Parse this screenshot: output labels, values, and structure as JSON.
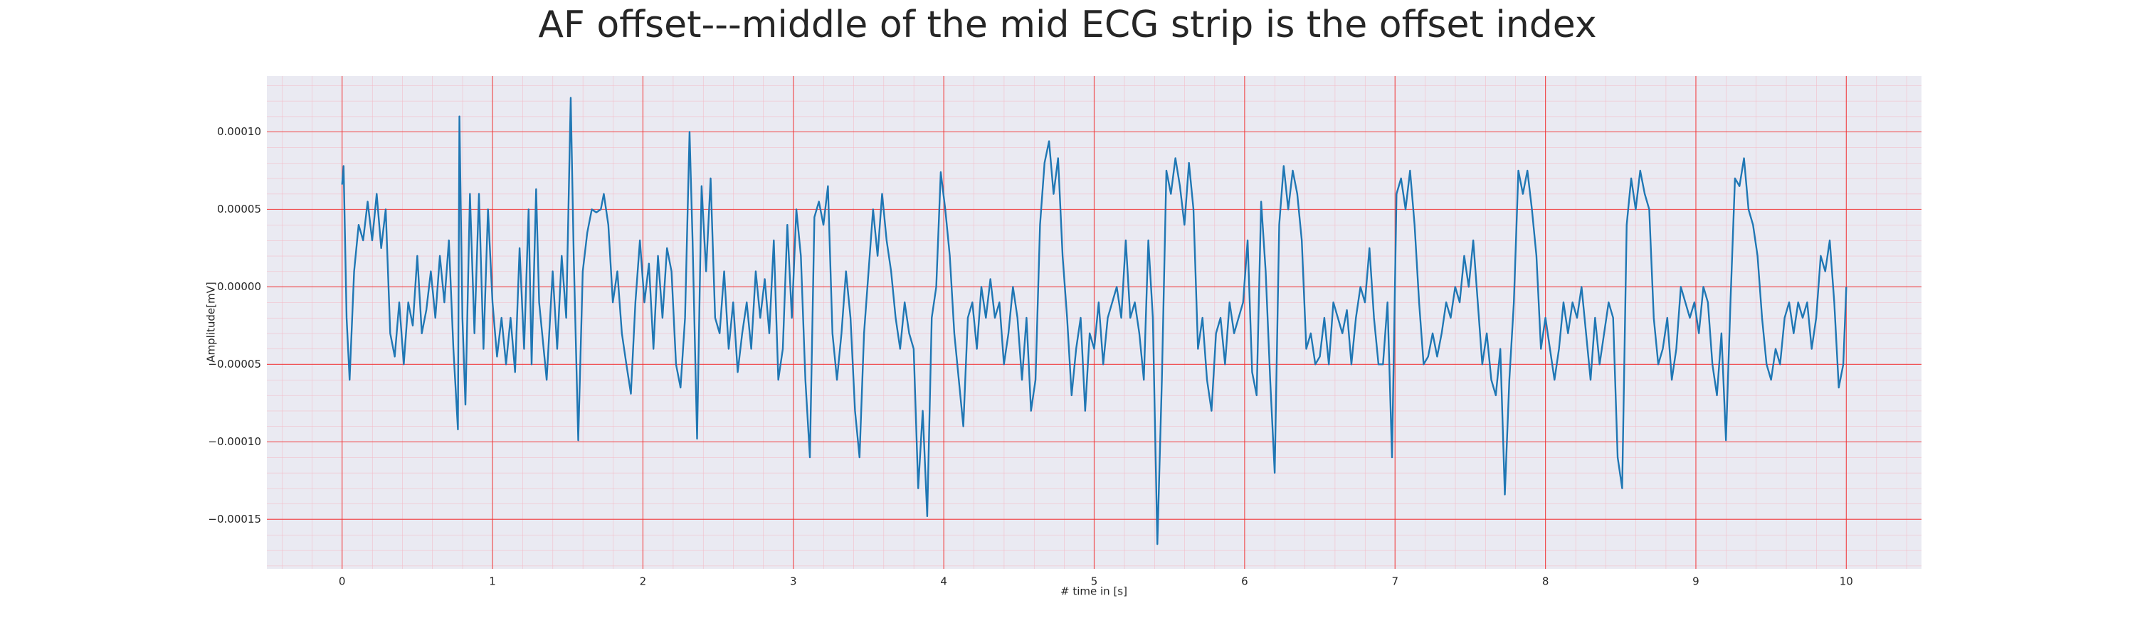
{
  "chart_data": {
    "type": "line",
    "title": "AF offset---middle of the mid ECG strip is the offset index",
    "xlabel": "# time in [s]",
    "ylabel": "Amplitude[mV]",
    "color": "#1f77b4",
    "grid": true,
    "minor_grid": true,
    "xlim": [
      -0.5,
      10.5
    ],
    "ylim": [
      -0.000182,
      0.000136
    ],
    "xticks": [
      0,
      1,
      2,
      3,
      4,
      5,
      6,
      7,
      8,
      9,
      10
    ],
    "yticks": [
      {
        "value": -0.00015,
        "label": "−0.00015"
      },
      {
        "value": -0.0001,
        "label": "−0.00010"
      },
      {
        "value": -5e-05,
        "label": "−0.00005"
      },
      {
        "value": 0,
        "label": "0.00000"
      },
      {
        "value": 5e-05,
        "label": "0.00005"
      },
      {
        "value": 0.0001,
        "label": "0.00010"
      }
    ],
    "x": [
      0.0,
      0.01,
      0.03,
      0.05,
      0.08,
      0.11,
      0.14,
      0.17,
      0.2,
      0.23,
      0.26,
      0.29,
      0.32,
      0.35,
      0.38,
      0.41,
      0.44,
      0.47,
      0.5,
      0.53,
      0.56,
      0.59,
      0.62,
      0.65,
      0.68,
      0.71,
      0.74,
      0.77,
      0.78,
      0.8,
      0.82,
      0.85,
      0.88,
      0.91,
      0.94,
      0.97,
      1.0,
      1.03,
      1.06,
      1.09,
      1.12,
      1.15,
      1.18,
      1.21,
      1.24,
      1.26,
      1.29,
      1.31,
      1.33,
      1.36,
      1.4,
      1.43,
      1.46,
      1.49,
      1.52,
      1.54,
      1.57,
      1.6,
      1.63,
      1.66,
      1.69,
      1.72,
      1.74,
      1.77,
      1.8,
      1.83,
      1.86,
      1.89,
      1.92,
      1.95,
      1.98,
      2.01,
      2.04,
      2.07,
      2.1,
      2.13,
      2.16,
      2.19,
      2.22,
      2.25,
      2.28,
      2.31,
      2.33,
      2.36,
      2.39,
      2.42,
      2.45,
      2.48,
      2.51,
      2.54,
      2.57,
      2.6,
      2.63,
      2.66,
      2.69,
      2.72,
      2.75,
      2.78,
      2.81,
      2.84,
      2.87,
      2.9,
      2.93,
      2.96,
      2.99,
      3.02,
      3.05,
      3.08,
      3.11,
      3.14,
      3.17,
      3.2,
      3.23,
      3.26,
      3.29,
      3.32,
      3.35,
      3.38,
      3.41,
      3.44,
      3.47,
      3.5,
      3.53,
      3.56,
      3.59,
      3.62,
      3.65,
      3.68,
      3.71,
      3.74,
      3.77,
      3.8,
      3.83,
      3.86,
      3.89,
      3.92,
      3.95,
      3.98,
      4.01,
      4.04,
      4.07,
      4.1,
      4.13,
      4.16,
      4.19,
      4.22,
      4.25,
      4.28,
      4.31,
      4.34,
      4.37,
      4.4,
      4.43,
      4.46,
      4.49,
      4.52,
      4.55,
      4.58,
      4.61,
      4.64,
      4.67,
      4.7,
      4.73,
      4.76,
      4.79,
      4.82,
      4.85,
      4.88,
      4.91,
      4.94,
      4.97,
      5.0,
      5.03,
      5.06,
      5.09,
      5.12,
      5.15,
      5.18,
      5.21,
      5.24,
      5.27,
      5.3,
      5.33,
      5.36,
      5.39,
      5.42,
      5.45,
      5.48,
      5.51,
      5.54,
      5.57,
      5.6,
      5.63,
      5.66,
      5.69,
      5.72,
      5.75,
      5.78,
      5.81,
      5.84,
      5.87,
      5.9,
      5.93,
      5.96,
      5.99,
      6.02,
      6.05,
      6.08,
      6.11,
      6.14,
      6.17,
      6.2,
      6.23,
      6.26,
      6.29,
      6.32,
      6.35,
      6.38,
      6.41,
      6.44,
      6.47,
      6.5,
      6.53,
      6.56,
      6.59,
      6.62,
      6.65,
      6.68,
      6.71,
      6.74,
      6.77,
      6.8,
      6.83,
      6.86,
      6.89,
      6.92,
      6.95,
      6.98,
      7.01,
      7.04,
      7.07,
      7.1,
      7.13,
      7.16,
      7.19,
      7.22,
      7.25,
      7.28,
      7.31,
      7.34,
      7.37,
      7.4,
      7.43,
      7.46,
      7.49,
      7.52,
      7.55,
      7.58,
      7.61,
      7.64,
      7.67,
      7.7,
      7.73,
      7.76,
      7.79,
      7.82,
      7.85,
      7.88,
      7.91,
      7.94,
      7.97,
      8.0,
      8.03,
      8.06,
      8.09,
      8.12,
      8.15,
      8.18,
      8.21,
      8.24,
      8.27,
      8.3,
      8.33,
      8.36,
      8.39,
      8.42,
      8.45,
      8.48,
      8.51,
      8.54,
      8.57,
      8.6,
      8.63,
      8.66,
      8.69,
      8.72,
      8.75,
      8.78,
      8.81,
      8.84,
      8.87,
      8.9,
      8.93,
      8.96,
      8.99,
      9.02,
      9.05,
      9.08,
      9.11,
      9.14,
      9.17,
      9.2,
      9.23,
      9.26,
      9.29,
      9.32,
      9.35,
      9.38,
      9.41,
      9.44,
      9.47,
      9.5,
      9.53,
      9.56,
      9.59,
      9.62,
      9.65,
      9.68,
      9.71,
      9.74,
      9.77,
      9.8,
      9.83,
      9.86,
      9.89,
      9.92,
      9.95,
      9.98,
      10.0
    ],
    "values": [
      6.6e-05,
      7.8e-05,
      -2e-05,
      -6e-05,
      1e-05,
      4e-05,
      3e-05,
      5.5e-05,
      3e-05,
      6e-05,
      2.5e-05,
      5e-05,
      -3e-05,
      -4.5e-05,
      -1e-05,
      -5e-05,
      -1e-05,
      -2.5e-05,
      2e-05,
      -3e-05,
      -1.5e-05,
      1e-05,
      -2e-05,
      2e-05,
      -1e-05,
      3e-05,
      -4e-05,
      -9.2e-05,
      0.00011,
      -2e-05,
      -7.6e-05,
      6e-05,
      -3e-05,
      6e-05,
      -4e-05,
      5e-05,
      -1e-05,
      -4.5e-05,
      -2e-05,
      -5e-05,
      -2e-05,
      -5.5e-05,
      2.5e-05,
      -4e-05,
      5e-05,
      -5e-05,
      6.3e-05,
      -1e-05,
      -3e-05,
      -6e-05,
      1e-05,
      -4e-05,
      2e-05,
      -2e-05,
      0.000122,
      2e-05,
      -9.9e-05,
      1e-05,
      3.5e-05,
      5e-05,
      4.8e-05,
      5e-05,
      6e-05,
      4e-05,
      -1e-05,
      1e-05,
      -3e-05,
      -5e-05,
      -6.9e-05,
      -1e-05,
      3e-05,
      -1e-05,
      1.5e-05,
      -4e-05,
      2e-05,
      -2e-05,
      2.5e-05,
      1e-05,
      -5e-05,
      -6.5e-05,
      -2e-05,
      0.0001,
      3e-05,
      -9.8e-05,
      6.5e-05,
      1e-05,
      7e-05,
      -2e-05,
      -3e-05,
      1e-05,
      -4e-05,
      -1e-05,
      -5.5e-05,
      -3e-05,
      -1e-05,
      -4e-05,
      1e-05,
      -2e-05,
      5e-06,
      -3e-05,
      3e-05,
      -6e-05,
      -4e-05,
      4e-05,
      -2e-05,
      5e-05,
      2e-05,
      -6e-05,
      -0.00011,
      4.5e-05,
      5.5e-05,
      4e-05,
      6.5e-05,
      -3e-05,
      -6e-05,
      -3e-05,
      1e-05,
      -2e-05,
      -8e-05,
      -0.00011,
      -3e-05,
      1e-05,
      5e-05,
      2e-05,
      6e-05,
      3e-05,
      1e-05,
      -2e-05,
      -4e-05,
      -1e-05,
      -3e-05,
      -4e-05,
      -0.00013,
      -8e-05,
      -0.000148,
      -2e-05,
      0,
      7.4e-05,
      5e-05,
      2e-05,
      -3e-05,
      -6e-05,
      -9e-05,
      -2e-05,
      -1e-05,
      -4e-05,
      0,
      -2e-05,
      5e-06,
      -2e-05,
      -1e-05,
      -5e-05,
      -3e-05,
      0,
      -2e-05,
      -6e-05,
      -2e-05,
      -8e-05,
      -6e-05,
      4e-05,
      8e-05,
      9.4e-05,
      6e-05,
      8.3e-05,
      2e-05,
      -2e-05,
      -7e-05,
      -4e-05,
      -2e-05,
      -8e-05,
      -3e-05,
      -4e-05,
      -1e-05,
      -5e-05,
      -2e-05,
      -1e-05,
      0,
      -2e-05,
      3e-05,
      -2e-05,
      -1e-05,
      -3e-05,
      -6e-05,
      3e-05,
      -2e-05,
      -0.000166,
      -6e-05,
      7.5e-05,
      6e-05,
      8.3e-05,
      6.5e-05,
      4e-05,
      8e-05,
      5e-05,
      -4e-05,
      -2e-05,
      -6e-05,
      -8e-05,
      -3e-05,
      -2e-05,
      -5e-05,
      -1e-05,
      -3e-05,
      -2e-05,
      -1e-05,
      3e-05,
      -5.5e-05,
      -7e-05,
      5.5e-05,
      1e-05,
      -6e-05,
      -0.00012,
      4e-05,
      7.8e-05,
      5e-05,
      7.5e-05,
      6e-05,
      3e-05,
      -4e-05,
      -3e-05,
      -5e-05,
      -4.5e-05,
      -2e-05,
      -5e-05,
      -1e-05,
      -2e-05,
      -3e-05,
      -1.5e-05,
      -5e-05,
      -2e-05,
      0,
      -1e-05,
      2.5e-05,
      -2e-05,
      -5e-05,
      -5e-05,
      -1e-05,
      -0.00011,
      6e-05,
      7e-05,
      5e-05,
      7.5e-05,
      4e-05,
      -1e-05,
      -5e-05,
      -4.5e-05,
      -3e-05,
      -4.5e-05,
      -3e-05,
      -1e-05,
      -2e-05,
      0,
      -1e-05,
      2e-05,
      0,
      3e-05,
      -1e-05,
      -5e-05,
      -3e-05,
      -6e-05,
      -7e-05,
      -4e-05,
      -0.000134,
      -6e-05,
      -1e-05,
      7.5e-05,
      6e-05,
      7.5e-05,
      5e-05,
      2e-05,
      -4e-05,
      -2e-05,
      -4e-05,
      -6e-05,
      -4e-05,
      -1e-05,
      -3e-05,
      -1e-05,
      -2e-05,
      0,
      -3e-05,
      -6e-05,
      -2e-05,
      -5e-05,
      -3e-05,
      -1e-05,
      -2e-05,
      -0.00011,
      -0.00013,
      4e-05,
      7e-05,
      5e-05,
      7.5e-05,
      6e-05,
      5e-05,
      -2e-05,
      -5e-05,
      -4e-05,
      -2e-05,
      -6e-05,
      -4e-05,
      0,
      -1e-05,
      -2e-05,
      -1e-05,
      -3e-05,
      0,
      -1e-05,
      -5e-05,
      -7e-05,
      -3e-05,
      -9.9e-05,
      -1e-05,
      7e-05,
      6.5e-05,
      8.3e-05,
      5e-05,
      4e-05,
      2e-05,
      -2e-05,
      -5e-05,
      -6e-05,
      -4e-05,
      -5e-05,
      -2e-05,
      -1e-05,
      -3e-05,
      -1e-05,
      -2e-05,
      -1e-05,
      -4e-05,
      -2e-05,
      2e-05,
      1e-05,
      3e-05,
      -1e-05,
      -6.5e-05,
      -5e-05,
      0
    ]
  }
}
